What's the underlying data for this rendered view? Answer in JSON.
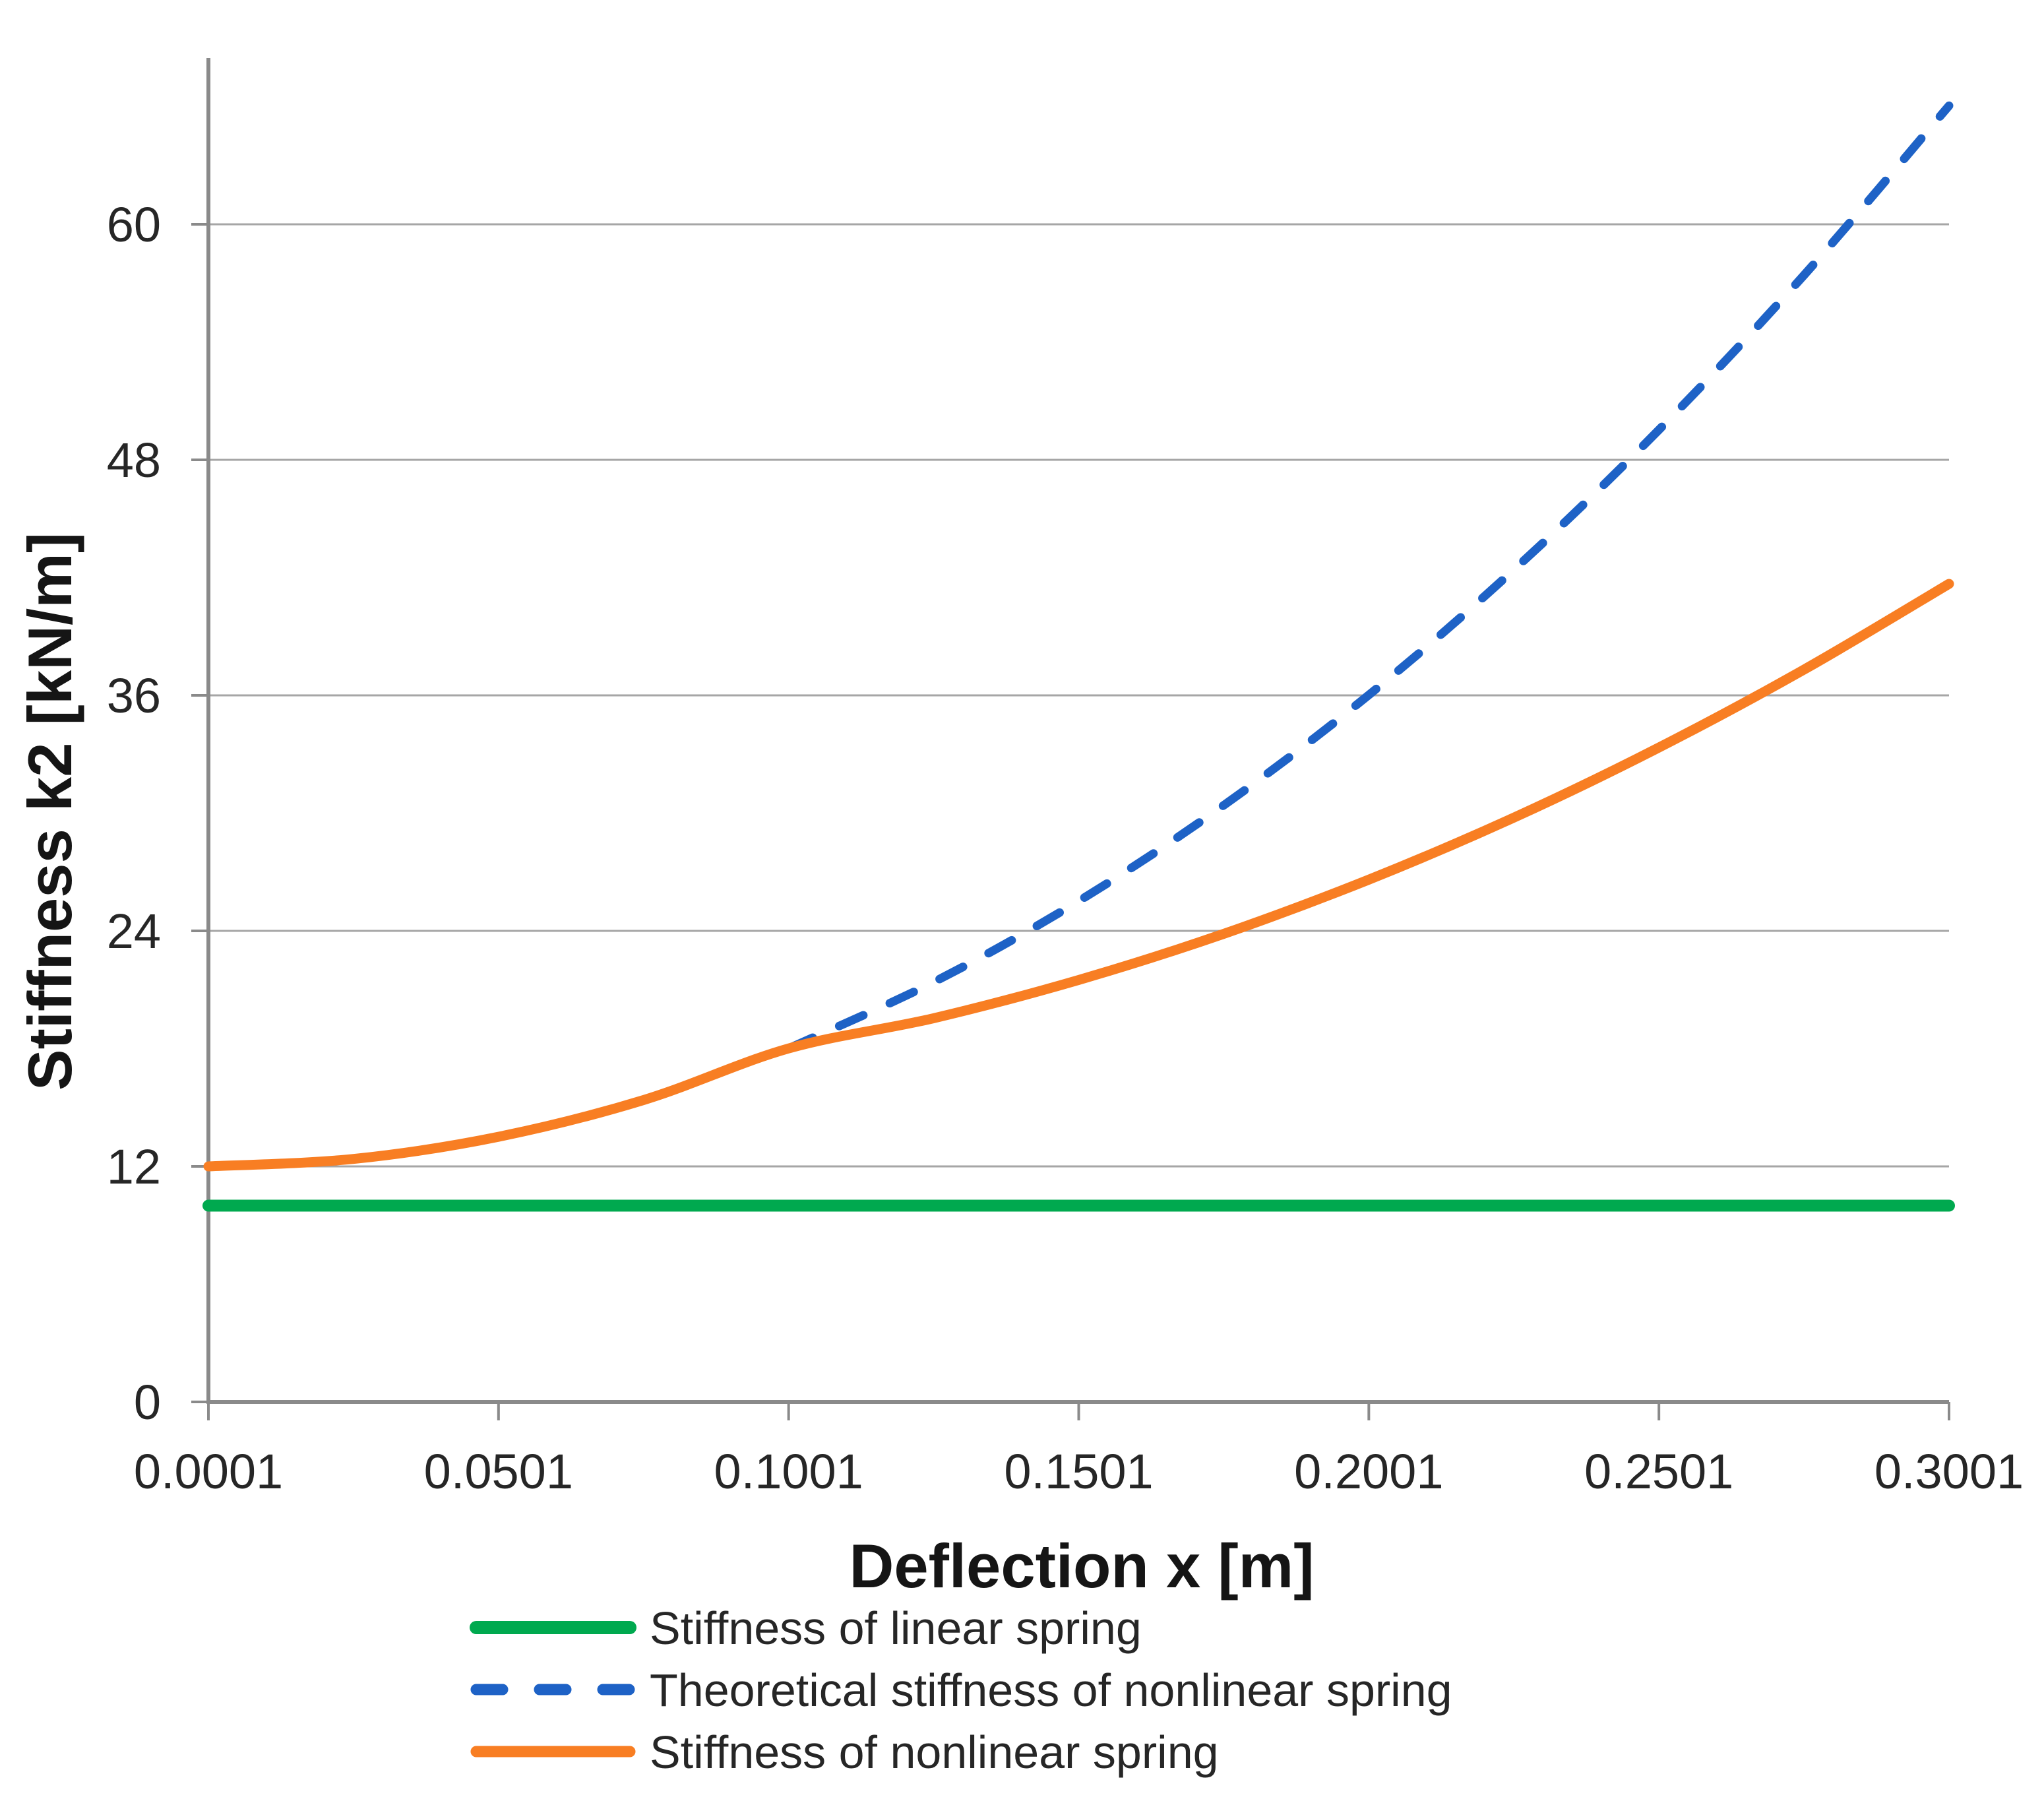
{
  "chart_data": {
    "type": "line",
    "title": "",
    "xlabel": "Deflection x [m]",
    "ylabel": "Stiffness k2 [kN/m]",
    "x_tick_labels": [
      "0.0001",
      "0.0501",
      "0.1001",
      "0.1501",
      "0.2001",
      "0.2501",
      "0.3001"
    ],
    "y_tick_labels": [
      "0",
      "12",
      "24",
      "36",
      "48",
      "60"
    ],
    "xlim": [
      0.0001,
      0.3001
    ],
    "ylim": [
      0,
      60
    ],
    "grid": "horizontal-only",
    "legend_position": "bottom-left",
    "axis_color": "#8A8A8A",
    "gridline_color": "#A6A6A6",
    "x": [
      0.0001,
      0.0251,
      0.0501,
      0.0751,
      0.1001,
      0.1251,
      0.1501,
      0.1751,
      0.2001,
      0.2251,
      0.2501,
      0.2751,
      0.3001
    ],
    "series": [
      {
        "id": "linear-spring",
        "name": "Stiffness of linear spring",
        "color": "#00A94F",
        "style": "solid",
        "values": [
          10,
          10,
          10,
          10,
          10,
          10,
          10,
          10,
          10,
          10,
          10,
          10,
          10
        ]
      },
      {
        "id": "theoretical-nonlinear-spring",
        "name": "Theoretical stiffness of nonlinear spring",
        "color": "#1E62C6",
        "style": "dashed",
        "visible_from_x": 0.1001,
        "values": [
          12,
          12.38,
          13.51,
          15.38,
          18.01,
          21.39,
          25.52,
          30.4,
          36.02,
          42.4,
          49.53,
          57.41,
          66.04
        ]
      },
      {
        "id": "nonlinear-spring",
        "name": "Stiffness of nonlinear spring",
        "color": "#F87E23",
        "style": "solid",
        "values": [
          12,
          12.38,
          13.51,
          15.38,
          18.01,
          19.55,
          21.5,
          23.85,
          26.61,
          29.77,
          33.34,
          37.31,
          41.68
        ]
      }
    ]
  }
}
